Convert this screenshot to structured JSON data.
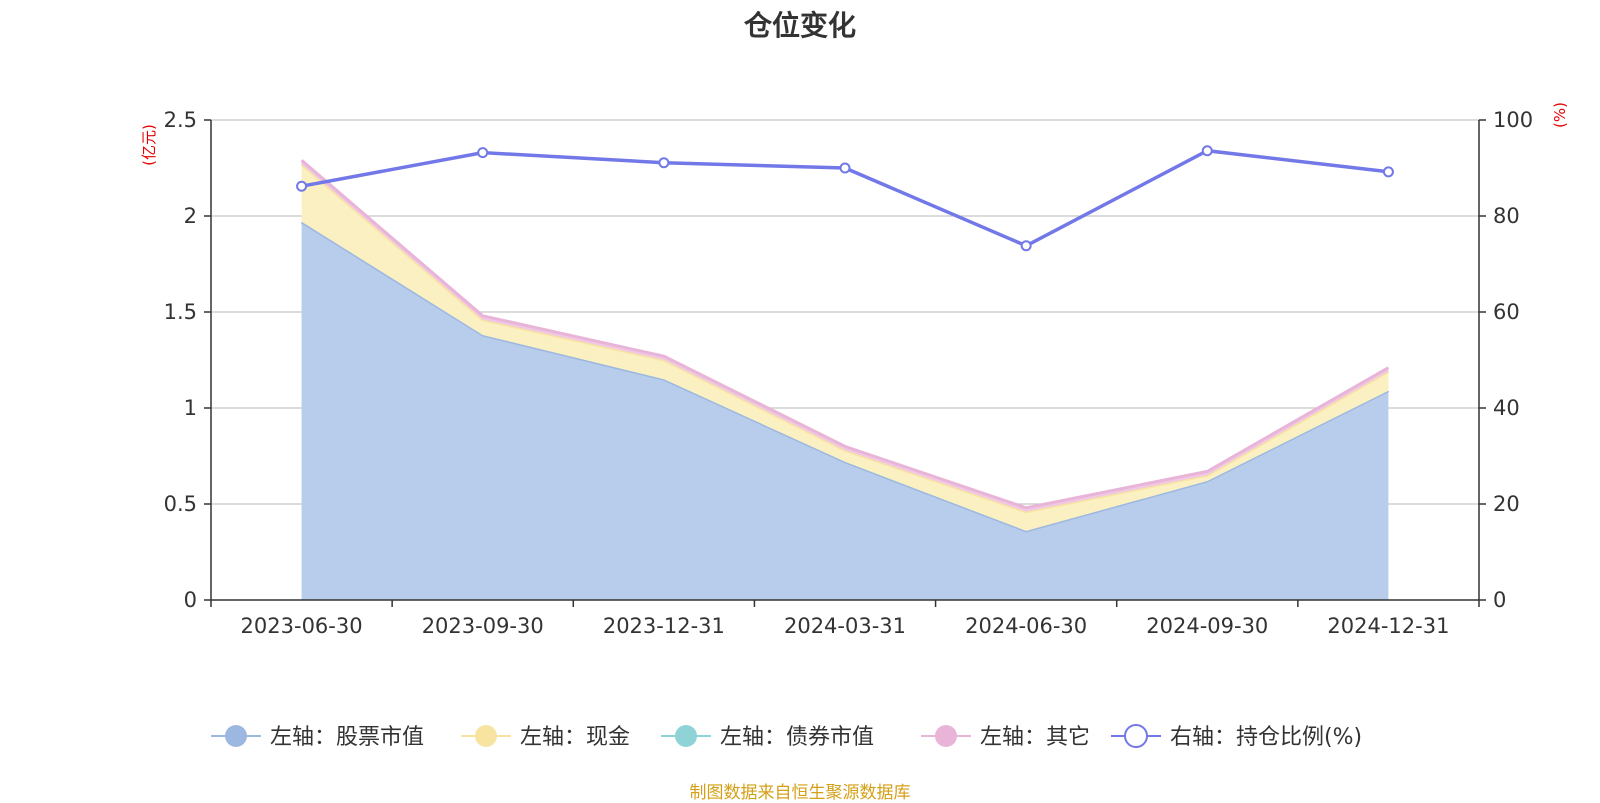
{
  "chart_data": {
    "type": "area",
    "title": "仓位变化",
    "categories": [
      "2023-06-30",
      "2023-09-30",
      "2023-12-31",
      "2024-03-31",
      "2024-06-30",
      "2024-09-30",
      "2024-12-31"
    ],
    "left_axis": {
      "unit": "(亿元)",
      "ylim": [
        0,
        2.5
      ],
      "ticks": [
        "0",
        "0.5",
        "1",
        "1.5",
        "2",
        "2.5"
      ],
      "tick_values": [
        0,
        0.5,
        1,
        1.5,
        2,
        2.5
      ]
    },
    "right_axis": {
      "unit": "(%)",
      "ylim": [
        0,
        100
      ],
      "ticks": [
        "0",
        "20",
        "40",
        "60",
        "80",
        "100"
      ],
      "tick_values": [
        0,
        20,
        40,
        60,
        80,
        100
      ]
    },
    "stacked": true,
    "grid": true,
    "legend_position": "bottom",
    "series": [
      {
        "name": "左轴：股票市值",
        "axis": "left",
        "type": "area",
        "color": "#9db8e0",
        "fill": "#b8cdeb",
        "values": [
          1.97,
          1.38,
          1.15,
          0.72,
          0.36,
          0.62,
          1.09
        ]
      },
      {
        "name": "左轴：现金",
        "axis": "left",
        "type": "area",
        "color": "#f7e4a0",
        "fill": "#fbf0c2",
        "values": [
          0.3,
          0.08,
          0.1,
          0.06,
          0.1,
          0.03,
          0.1
        ]
      },
      {
        "name": "左轴：债券市值",
        "axis": "left",
        "type": "area",
        "color": "#8fd3d6",
        "fill": "#a8dcdf",
        "values": [
          0,
          0,
          0,
          0,
          0,
          0,
          0
        ]
      },
      {
        "name": "左轴：其它",
        "axis": "left",
        "type": "area",
        "color": "#e8b4d8",
        "fill": "#f0c8e4",
        "values": [
          0.02,
          0.02,
          0.02,
          0.02,
          0.02,
          0.02,
          0.02
        ]
      },
      {
        "name": "右轴：持仓比例(%)",
        "axis": "right",
        "type": "line",
        "color": "#7278e8",
        "values": [
          86.2,
          93.2,
          91.1,
          90.0,
          73.8,
          93.6,
          89.2
        ]
      }
    ]
  },
  "source_note": "制图数据来自恒生聚源数据库"
}
